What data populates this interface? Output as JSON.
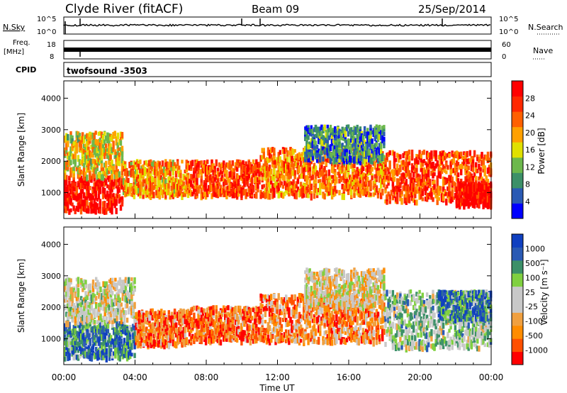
{
  "header": {
    "station": "Clyde River (fitACF)",
    "beam": "Beam 09",
    "date": "25/Sep/2014"
  },
  "strip": {
    "nsky_label": "N.Sky",
    "nsky_top": "10^5",
    "nsky_bottom": "10^0",
    "nsearch_label": "N.Search",
    "nsearch_top": "10^5",
    "nsearch_bottom": "10^0",
    "freq_label_1": "Freq.",
    "freq_label_2": "[MHz]",
    "freq_top": "18",
    "freq_bottom": "8",
    "nave_label": "Nave",
    "nave_top": "60",
    "nave_bottom": "0",
    "cpid_label": "CPID",
    "cpid_value": "twofsound -3503"
  },
  "colors": {
    "power_scale": [
      "#0000ff",
      "#2a5ab4",
      "#3c9068",
      "#6cb84c",
      "#e0e000",
      "#ffa000",
      "#ff6000",
      "#ff2800",
      "#ff0000"
    ],
    "velocity_scale": [
      "#ff0000",
      "#ff5000",
      "#ff8c00",
      "#f0a040",
      "#c8c8c8",
      "#c8c8c8",
      "#80d040",
      "#3c9068",
      "#2a5ab4",
      "#1040c0"
    ]
  },
  "chart_data": [
    {
      "type": "heatmap",
      "name": "power",
      "xlabel": "",
      "ylabel": "Slant Range [km]",
      "x_ticks": [
        "00:00",
        "04:00",
        "08:00",
        "12:00",
        "16:00",
        "20:00",
        "00:00"
      ],
      "y_ticks": [
        1000,
        2000,
        3000,
        4000
      ],
      "xlim": [
        0,
        24
      ],
      "ylim": [
        180,
        4550
      ],
      "colorbar_label": "Power [dB]",
      "colorbar_ticks": [
        "28",
        "24",
        "20",
        "16",
        "12",
        "8",
        "4"
      ],
      "scatter_bands": [
        {
          "t0": 0.0,
          "t1": 3.3,
          "r0": 400,
          "r1": 1500,
          "level": 0.95
        },
        {
          "t0": 0.0,
          "t1": 3.3,
          "r0": 1500,
          "r1": 2900,
          "level": 0.55
        },
        {
          "t0": 3.3,
          "t1": 7.0,
          "r0": 900,
          "r1": 2000,
          "level": 0.65
        },
        {
          "t0": 7.0,
          "t1": 11.0,
          "r0": 900,
          "r1": 2000,
          "level": 0.8
        },
        {
          "t0": 11.0,
          "t1": 18.0,
          "r0": 900,
          "r1": 2400,
          "level": 0.7
        },
        {
          "t0": 13.5,
          "t1": 18.0,
          "r0": 2000,
          "r1": 3100,
          "level": 0.25
        },
        {
          "t0": 18.0,
          "t1": 24.0,
          "r0": 700,
          "r1": 2300,
          "level": 0.8
        },
        {
          "t0": 22.0,
          "t1": 24.0,
          "r0": 600,
          "r1": 1300,
          "level": 0.95
        }
      ]
    },
    {
      "type": "heatmap",
      "name": "velocity",
      "xlabel": "Time UT",
      "ylabel": "Slant Range [km]",
      "x_ticks": [
        "00:00",
        "04:00",
        "08:00",
        "12:00",
        "16:00",
        "20:00",
        "00:00"
      ],
      "y_ticks": [
        1000,
        2000,
        3000,
        4000
      ],
      "xlim": [
        0,
        24
      ],
      "ylim": [
        180,
        4550
      ],
      "colorbar_label": "Velocity [m s⁻¹]",
      "colorbar_ticks": [
        "1000",
        "500",
        "100",
        "25",
        "-25",
        "-100",
        "-500",
        "-1000"
      ],
      "scatter_bands": [
        {
          "t0": 0.0,
          "t1": 4.0,
          "r0": 400,
          "r1": 1500,
          "level": 0.8
        },
        {
          "t0": 0.0,
          "t1": 4.0,
          "r0": 1500,
          "r1": 2900,
          "level": 0.5
        },
        {
          "t0": 4.0,
          "t1": 7.0,
          "r0": 800,
          "r1": 1900,
          "level": 0.2
        },
        {
          "t0": 7.0,
          "t1": 11.0,
          "r0": 900,
          "r1": 2000,
          "level": 0.2
        },
        {
          "t0": 11.0,
          "t1": 18.0,
          "r0": 900,
          "r1": 2400,
          "level": 0.25
        },
        {
          "t0": 13.5,
          "t1": 18.0,
          "r0": 2000,
          "r1": 3200,
          "level": 0.45
        },
        {
          "t0": 18.0,
          "t1": 24.0,
          "r0": 700,
          "r1": 2500,
          "level": 0.6
        },
        {
          "t0": 21.0,
          "t1": 24.0,
          "r0": 1600,
          "r1": 2500,
          "level": 0.8
        }
      ]
    }
  ]
}
